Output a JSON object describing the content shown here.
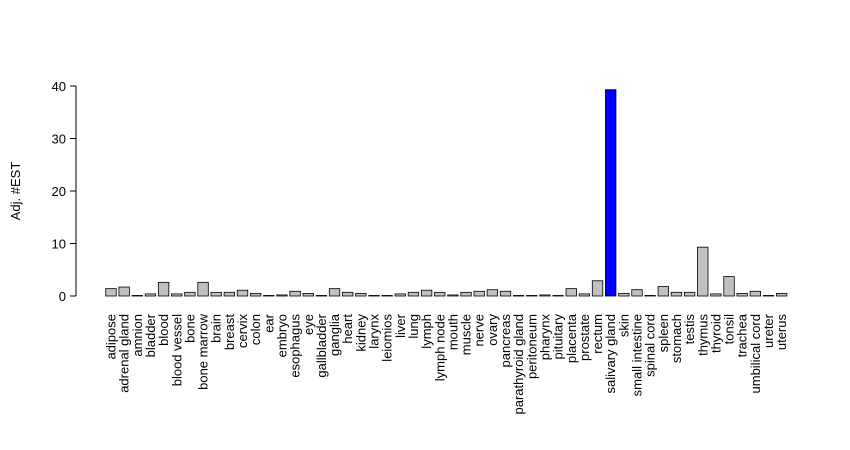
{
  "chart_data": {
    "type": "bar",
    "title": "",
    "xlabel": "",
    "ylabel": "Adj. #EST",
    "ylim": [
      0,
      40
    ],
    "yticks": [
      0,
      10,
      20,
      30,
      40
    ],
    "grid": false,
    "legend": "none",
    "bar_color": "#c0c0c0",
    "highlight_color": "#0000ff",
    "highlight_category": "salivary gland",
    "categories": [
      "adipose",
      "adrenal gland",
      "amnion",
      "bladder",
      "blood",
      "blood vessel",
      "bone",
      "bone marrow",
      "brain",
      "breast",
      "cervix",
      "colon",
      "ear",
      "embryo",
      "esophagus",
      "eye",
      "gallbladder",
      "ganglia",
      "heart",
      "kidney",
      "larynx",
      "leiomios",
      "liver",
      "lung",
      "lymph",
      "lymph node",
      "mouth",
      "muscle",
      "nerve",
      "ovary",
      "pancreas",
      "parathyroid gland",
      "peritoneum",
      "pharynx",
      "pituitary",
      "placenta",
      "prostate",
      "rectum",
      "salivary gland",
      "skin",
      "small intestine",
      "spinal cord",
      "spleen",
      "stomach",
      "testis",
      "thymus",
      "thyroid",
      "tonsil",
      "trachea",
      "umbilical cord",
      "ureter",
      "uterus"
    ],
    "values": [
      1.4,
      1.7,
      0.1,
      0.4,
      2.6,
      0.4,
      0.7,
      2.6,
      0.7,
      0.7,
      1.1,
      0.5,
      0.1,
      0.2,
      0.9,
      0.5,
      0.1,
      1.4,
      0.7,
      0.5,
      0.1,
      0.1,
      0.4,
      0.7,
      1.1,
      0.7,
      0.2,
      0.7,
      0.9,
      1.2,
      0.9,
      0.1,
      0.1,
      0.2,
      0.1,
      1.4,
      0.4,
      2.9,
      39.3,
      0.5,
      1.2,
      0.1,
      1.8,
      0.7,
      0.7,
      9.3,
      0.4,
      3.7,
      0.5,
      0.9,
      0.1,
      0.5
    ]
  }
}
